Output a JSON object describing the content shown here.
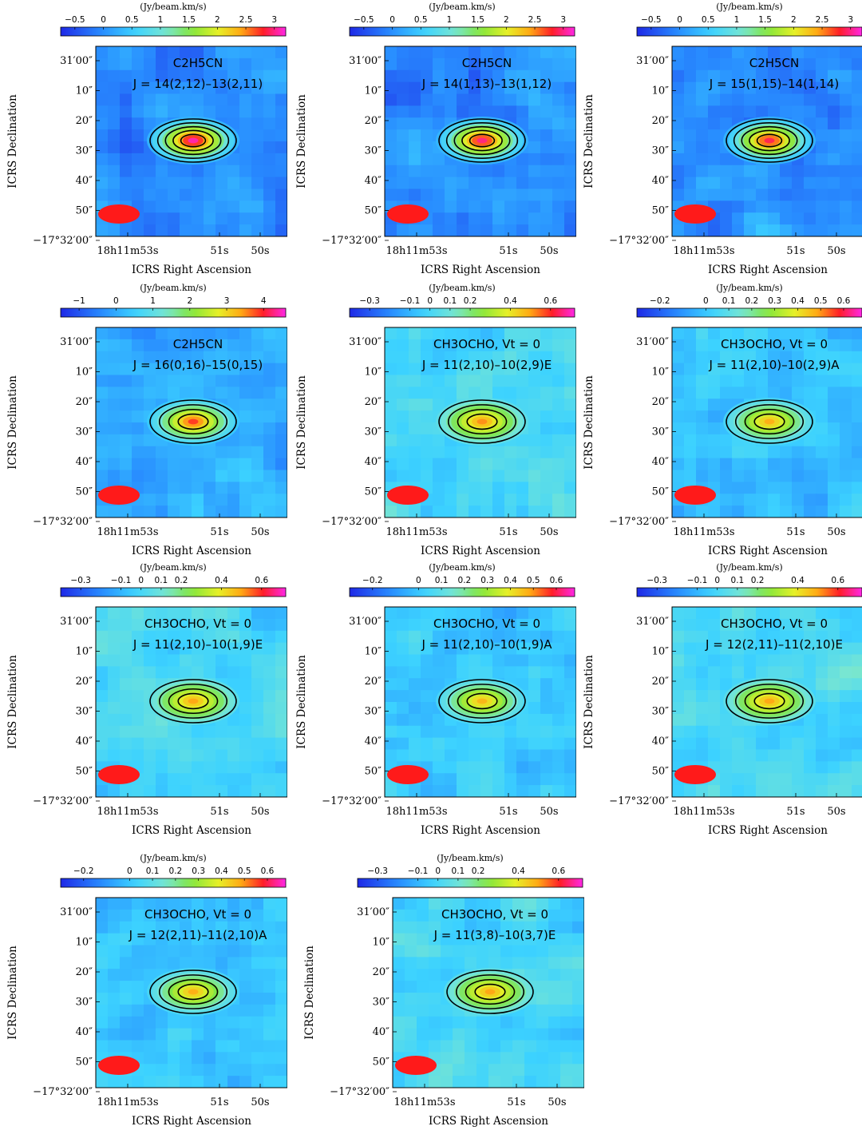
{
  "chart_data": [
    {
      "type": "heatmap",
      "molecule": "C2H5CN",
      "transition": "J = 14(2,12)–13(2,11)",
      "colorbar_unit": "(Jy/beam.km/s)",
      "colorbar_ticks": [
        "−0.5",
        "0",
        "0.5",
        "1",
        "1.5",
        "2",
        "2.5",
        "3"
      ],
      "colorbar_range": [
        -0.75,
        3.2
      ],
      "peak": 3.1,
      "contour_levels": 5,
      "xlabel": "ICRS Right Ascension",
      "ylabel": "ICRS Declination",
      "x_ticks": [
        "18h11m53s",
        "51s",
        "50s"
      ],
      "y_ticks": [
        "31′00″",
        "10″",
        "20″",
        "30″",
        "40″",
        "50″",
        "−17°32′00″"
      ]
    },
    {
      "type": "heatmap",
      "molecule": "C2H5CN",
      "transition": "J = 14(1,13)–13(1,12)",
      "colorbar_unit": "(Jy/beam.km/s)",
      "colorbar_ticks": [
        "−0.5",
        "0",
        "0.5",
        "1",
        "1.5",
        "2",
        "2.5",
        "3"
      ],
      "colorbar_range": [
        -0.75,
        3.2
      ],
      "peak": 3.0,
      "contour_levels": 5,
      "xlabel": "ICRS Right Ascension",
      "ylabel": "ICRS Declination",
      "x_ticks": [
        "18h11m53s",
        "51s",
        "50s"
      ],
      "y_ticks": [
        "31′00″",
        "10″",
        "20″",
        "30″",
        "40″",
        "50″",
        "−17°32′00″"
      ]
    },
    {
      "type": "heatmap",
      "molecule": "C2H5CN",
      "transition": "J = 15(1,15)–14(1,14)",
      "colorbar_unit": "(Jy/beam.km/s)",
      "colorbar_ticks": [
        "−0.5",
        "0",
        "0.5",
        "1",
        "1.5",
        "2",
        "2.5",
        "3"
      ],
      "colorbar_range": [
        -0.75,
        3.2
      ],
      "peak": 2.9,
      "contour_levels": 5,
      "xlabel": "ICRS Right Ascension",
      "ylabel": "ICRS Declination",
      "x_ticks": [
        "18h11m53s",
        "51s",
        "50s"
      ],
      "y_ticks": [
        "31′00″",
        "10″",
        "20″",
        "30″",
        "40″",
        "50″",
        "−17°32′00″"
      ]
    },
    {
      "type": "heatmap",
      "molecule": "C2H5CN",
      "transition": "J = 16(0,16)–15(0,15)",
      "colorbar_unit": "(Jy/beam.km/s)",
      "colorbar_ticks": [
        "−1",
        "0",
        "1",
        "2",
        "3",
        "4"
      ],
      "colorbar_range": [
        -1.5,
        4.6
      ],
      "peak": 3.9,
      "contour_levels": 4,
      "xlabel": "ICRS Right Ascension",
      "ylabel": "ICRS Declination",
      "x_ticks": [
        "18h11m53s",
        "51s",
        "50s"
      ],
      "y_ticks": [
        "31′00″",
        "10″",
        "20″",
        "30″",
        "40″",
        "50″",
        "−17°32′00″"
      ]
    },
    {
      "type": "heatmap",
      "molecule": "CH3OCHO, Vt = 0",
      "transition": "J = 11(2,10)–10(2,9)E",
      "colorbar_unit": "(Jy/beam.km/s)",
      "colorbar_ticks": [
        "−0.3",
        "−0.1",
        "0",
        "0.1",
        "0.2",
        "0.4",
        "0.6"
      ],
      "colorbar_range": [
        -0.4,
        0.72
      ],
      "peak": 0.52,
      "contour_levels": 4,
      "xlabel": "ICRS Right Ascension",
      "ylabel": "ICRS Declination",
      "x_ticks": [
        "18h11m53s",
        "51s",
        "50s"
      ],
      "y_ticks": [
        "31′00″",
        "10″",
        "20″",
        "30″",
        "40″",
        "50″",
        "−17°32′00″"
      ]
    },
    {
      "type": "heatmap",
      "molecule": "CH3OCHO, Vt = 0",
      "transition": "J = 11(2,10)–10(2,9)A",
      "colorbar_unit": "(Jy/beam.km/s)",
      "colorbar_ticks": [
        "−0.2",
        "0",
        "0.1",
        "0.2",
        "0.3",
        "0.4",
        "0.5",
        "0.6"
      ],
      "colorbar_range": [
        -0.3,
        0.68
      ],
      "peak": 0.48,
      "contour_levels": 4,
      "xlabel": "ICRS Right Ascension",
      "ylabel": "ICRS Declination",
      "x_ticks": [
        "18h11m53s",
        "51s",
        "50s"
      ],
      "y_ticks": [
        "31′00″",
        "10″",
        "20″",
        "30″",
        "40″",
        "50″",
        "−17°32′00″"
      ]
    },
    {
      "type": "heatmap",
      "molecule": "CH3OCHO, Vt = 0",
      "transition": "J = 11(2,10)–10(1,9)E",
      "colorbar_unit": "(Jy/beam.km/s)",
      "colorbar_ticks": [
        "−0.3",
        "−0.1",
        "0",
        "0.1",
        "0.2",
        "0.4",
        "0.6"
      ],
      "colorbar_range": [
        -0.4,
        0.72
      ],
      "peak": 0.5,
      "contour_levels": 4,
      "xlabel": "ICRS Right Ascension",
      "ylabel": "ICRS Declination",
      "x_ticks": [
        "18h11m53s",
        "51s",
        "50s"
      ],
      "y_ticks": [
        "31′00″",
        "10″",
        "20″",
        "30″",
        "40″",
        "50″",
        "−17°32′00″"
      ]
    },
    {
      "type": "heatmap",
      "molecule": "CH3OCHO, Vt  = 0",
      "transition": "J = 11(2,10)–10(1,9)A",
      "colorbar_unit": "(Jy/beam.km/s)",
      "colorbar_ticks": [
        "−0.2",
        "0",
        "0.1",
        "0.2",
        "0.3",
        "0.4",
        "0.5",
        "0.6"
      ],
      "colorbar_range": [
        -0.3,
        0.68
      ],
      "peak": 0.47,
      "contour_levels": 4,
      "xlabel": "ICRS Right Ascension",
      "ylabel": "ICRS Declination",
      "x_ticks": [
        "18h11m53s",
        "51s",
        "50s"
      ],
      "y_ticks": [
        "31′00″",
        "10″",
        "20″",
        "30″",
        "40″",
        "50″",
        "−17°32′00″"
      ]
    },
    {
      "type": "heatmap",
      "molecule": "CH3OCHO, Vt = 0",
      "transition": "J = 12(2,11)–11(2,10)E",
      "colorbar_unit": "(Jy/beam.km/s)",
      "colorbar_ticks": [
        "−0.3",
        "−0.1",
        "0",
        "0.1",
        "0.2",
        "0.4",
        "0.6"
      ],
      "colorbar_range": [
        -0.4,
        0.72
      ],
      "peak": 0.5,
      "contour_levels": 4,
      "xlabel": "ICRS Right Ascension",
      "ylabel": "ICRS Declination",
      "x_ticks": [
        "18h11m53s",
        "51s",
        "50s"
      ],
      "y_ticks": [
        "31′00″",
        "10″",
        "20″",
        "30″",
        "40″",
        "50″",
        "−17°32′00″"
      ]
    },
    {
      "type": "heatmap",
      "molecule": "CH3OCHO, Vt = 0",
      "transition": "J = 12(2,11)–11(2,10)A",
      "colorbar_unit": "(Jy/beam.km/s)",
      "colorbar_ticks": [
        "−0.2",
        "0",
        "0.1",
        "0.2",
        "0.3",
        "0.4",
        "0.5",
        "0.6"
      ],
      "colorbar_range": [
        -0.3,
        0.68
      ],
      "peak": 0.48,
      "contour_levels": 4,
      "xlabel": "ICRS Right Ascension",
      "ylabel": "ICRS Declination",
      "x_ticks": [
        "18h11m53s",
        "51s",
        "50s"
      ],
      "y_ticks": [
        "31′00″",
        "10″",
        "20″",
        "30″",
        "40″",
        "50″",
        "−17°32′00″"
      ]
    },
    {
      "type": "heatmap",
      "molecule": "CH3OCHO, Vt = 0",
      "transition": "J  = 11(3,8)–10(3,7)E",
      "colorbar_unit": "(Jy/beam.km/s)",
      "colorbar_ticks": [
        "−0.3",
        "−0.1",
        "0",
        "0.1",
        "0.2",
        "0.4",
        "0.6"
      ],
      "colorbar_range": [
        -0.4,
        0.72
      ],
      "peak": 0.5,
      "contour_levels": 4,
      "xlabel": "ICRS Right Ascension",
      "ylabel": "ICRS Declination",
      "x_ticks": [
        "18h11m53s",
        "51s",
        "50s"
      ],
      "y_ticks": [
        "31′00″",
        "10″",
        "20″",
        "30″",
        "40″",
        "50″",
        "−17°32′00″"
      ]
    }
  ],
  "colors": {
    "beam": "#ff1a1a",
    "contour": "#000000",
    "background_field": "#5fd0ff"
  }
}
